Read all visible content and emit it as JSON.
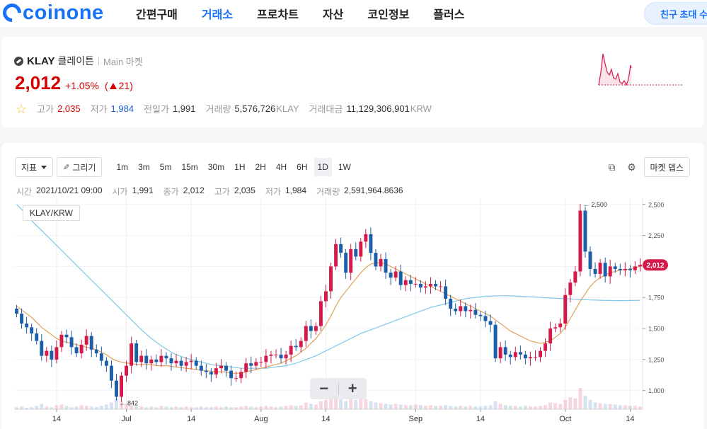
{
  "header": {
    "logo_text": "coinone",
    "nav": [
      "간편구매",
      "거래소",
      "프로차트",
      "자산",
      "코인정보",
      "플러스"
    ],
    "active_nav": "거래소",
    "invite_label": "친구 초대 수"
  },
  "ticker": {
    "symbol": "KLAY",
    "name": "클레이튼",
    "market": "Main 마켓",
    "price": "2,012",
    "change_rate": "+1.05%",
    "change_open": "(",
    "change_amount": "21)",
    "stats": {
      "high_label": "고가",
      "high": "2,035",
      "low_label": "저가",
      "low": "1,984",
      "prev_label": "전일가",
      "prev": "1,991",
      "volume_label": "거래량",
      "volume": "5,576,726",
      "volume_unit": "KLAY",
      "amount_label": "거래대금",
      "amount": "11,129,306,901",
      "amount_unit": "KRW"
    }
  },
  "toolbar": {
    "indicator_label": "지표",
    "draw_label": "그리기",
    "intervals": [
      "1m",
      "3m",
      "5m",
      "15m",
      "30m",
      "1H",
      "2H",
      "4H",
      "6H",
      "1D",
      "1W"
    ],
    "active_interval": "1D",
    "depth_label": "마켓 뎁스"
  },
  "info": {
    "time_label": "시간",
    "time": "2021/10/21 09:00",
    "open_label": "시가",
    "open": "1,991",
    "close_label": "종가",
    "close": "2,012",
    "high_label": "고가",
    "high": "2,035",
    "low_label": "저가",
    "low": "1,984",
    "volume_label": "거래량",
    "volume": "2,591,964.8636"
  },
  "colors": {
    "accent": "#1772f8",
    "up": "#d6194b",
    "down": "#1c5fa8",
    "ma_short": "#e0a15a",
    "ma_long": "#7fc8e6"
  },
  "chart_data": {
    "type": "candlestick",
    "pair": "KLAY/KRW",
    "ylim": [
      850,
      2550
    ],
    "y_ticks": [
      "2,500",
      "2,250",
      "2,000",
      "1,750",
      "1,500",
      "1,250",
      "1,000"
    ],
    "y_tick_values": [
      2500,
      2250,
      2000,
      1750,
      1500,
      1250,
      1000
    ],
    "x_ticks": [
      "14",
      "Jul",
      "14",
      "Aug",
      "14",
      "Sep",
      "14",
      "Oct",
      "14"
    ],
    "x_tick_index": [
      8,
      22,
      35,
      49,
      62,
      80,
      93,
      110,
      123
    ],
    "last_price_label": "2,012",
    "max_label": "← 2,500",
    "min_label": "← 842",
    "closes": [
      1620,
      1540,
      1510,
      1460,
      1400,
      1280,
      1320,
      1250,
      1350,
      1450,
      1430,
      1350,
      1300,
      1370,
      1440,
      1330,
      1300,
      1240,
      1200,
      1080,
      950,
      1120,
      1200,
      1380,
      1230,
      1280,
      1220,
      1250,
      1230,
      1280,
      1260,
      1220,
      1240,
      1200,
      1230,
      1240,
      1200,
      1160,
      1150,
      1130,
      1180,
      1200,
      1160,
      1100,
      1100,
      1150,
      1220,
      1200,
      1230,
      1230,
      1280,
      1290,
      1290,
      1260,
      1290,
      1360,
      1350,
      1400,
      1520,
      1480,
      1520,
      1720,
      1800,
      2000,
      2180,
      2110,
      1950,
      2140,
      2080,
      2200,
      2260,
      2110,
      2000,
      2060,
      1950,
      1910,
      1960,
      1850,
      1890,
      1860,
      1860,
      1830,
      1840,
      1860,
      1840,
      1840,
      1740,
      1660,
      1640,
      1680,
      1640,
      1650,
      1610,
      1600,
      1560,
      1530,
      1260,
      1350,
      1290,
      1270,
      1310,
      1290,
      1260,
      1270,
      1270,
      1320,
      1380,
      1500,
      1510,
      1540,
      1770,
      1870,
      1960,
      2450,
      2120,
      1980,
      1940,
      2030,
      1920,
      2000,
      1980,
      1970,
      1980,
      1970,
      2000,
      2012
    ],
    "ma_short": [
      1680,
      1650,
      1620,
      1590,
      1550,
      1510,
      1480,
      1450,
      1420,
      1400,
      1390,
      1380,
      1370,
      1360,
      1350,
      1340,
      1330,
      1310,
      1290,
      1260,
      1240,
      1230,
      1220,
      1220,
      1210,
      1210,
      1210,
      1210,
      1200,
      1200,
      1200,
      1195,
      1190,
      1185,
      1180,
      1175,
      1170,
      1165,
      1160,
      1155,
      1150,
      1150,
      1150,
      1140,
      1140,
      1140,
      1150,
      1160,
      1170,
      1180,
      1190,
      1200,
      1210,
      1220,
      1240,
      1260,
      1280,
      1310,
      1340,
      1380,
      1420,
      1470,
      1530,
      1600,
      1680,
      1750,
      1800,
      1850,
      1900,
      1950,
      1990,
      2020,
      2030,
      2030,
      2020,
      2000,
      1980,
      1960,
      1940,
      1920,
      1900,
      1880,
      1860,
      1840,
      1820,
      1800,
      1780,
      1760,
      1740,
      1720,
      1700,
      1680,
      1660,
      1640,
      1620,
      1600,
      1570,
      1540,
      1510,
      1480,
      1460,
      1440,
      1420,
      1400,
      1390,
      1380,
      1390,
      1400,
      1430,
      1460,
      1510,
      1580,
      1650,
      1720,
      1780,
      1840,
      1880,
      1910,
      1930,
      1950,
      1960,
      1970,
      1975,
      1980,
      1990,
      2000
    ],
    "ma_long": [
      2500,
      2460,
      2420,
      2370,
      2330,
      2290,
      2250,
      2210,
      2170,
      2130,
      2090,
      2050,
      2010,
      1970,
      1930,
      1890,
      1850,
      1810,
      1770,
      1730,
      1690,
      1650,
      1610,
      1570,
      1530,
      1490,
      1455,
      1420,
      1390,
      1360,
      1335,
      1310,
      1290,
      1275,
      1260,
      1250,
      1240,
      1230,
      1220,
      1210,
      1205,
      1200,
      1195,
      1190,
      1185,
      1180,
      1180,
      1180,
      1180,
      1180,
      1180,
      1185,
      1190,
      1195,
      1200,
      1210,
      1220,
      1235,
      1250,
      1265,
      1280,
      1300,
      1320,
      1340,
      1360,
      1380,
      1400,
      1420,
      1440,
      1460,
      1475,
      1490,
      1505,
      1520,
      1535,
      1550,
      1565,
      1580,
      1595,
      1610,
      1625,
      1640,
      1655,
      1670,
      1680,
      1690,
      1700,
      1710,
      1720,
      1730,
      1740,
      1745,
      1750,
      1755,
      1760,
      1762,
      1763,
      1764,
      1764,
      1763,
      1762,
      1760,
      1758,
      1756,
      1754,
      1750,
      1748,
      1746,
      1744,
      1742,
      1740,
      1738,
      1736,
      1734,
      1732,
      1730,
      1729,
      1728,
      1727,
      1726,
      1725,
      1725,
      1725,
      1726,
      1727,
      1728
    ],
    "volumes": [
      3,
      4,
      2,
      3,
      5,
      8,
      4,
      3,
      6,
      7,
      5,
      3,
      4,
      6,
      5,
      4,
      3,
      5,
      7,
      10,
      16,
      12,
      8,
      6,
      5,
      4,
      3,
      4,
      3,
      5,
      4,
      3,
      4,
      3,
      4,
      3,
      3,
      4,
      3,
      3,
      4,
      3,
      4,
      3,
      3,
      4,
      5,
      4,
      3,
      4,
      5,
      4,
      3,
      4,
      5,
      6,
      5,
      6,
      10,
      8,
      7,
      12,
      14,
      18,
      20,
      15,
      12,
      16,
      14,
      17,
      15,
      12,
      10,
      9,
      8,
      7,
      8,
      7,
      6,
      6,
      7,
      6,
      5,
      6,
      5,
      5,
      6,
      5,
      4,
      5,
      4,
      5,
      4,
      4,
      5,
      6,
      12,
      8,
      6,
      5,
      5,
      4,
      5,
      4,
      4,
      5,
      6,
      10,
      9,
      8,
      14,
      18,
      16,
      32,
      20,
      14,
      10,
      9,
      8,
      8,
      7,
      6,
      6,
      5,
      5,
      4
    ]
  }
}
